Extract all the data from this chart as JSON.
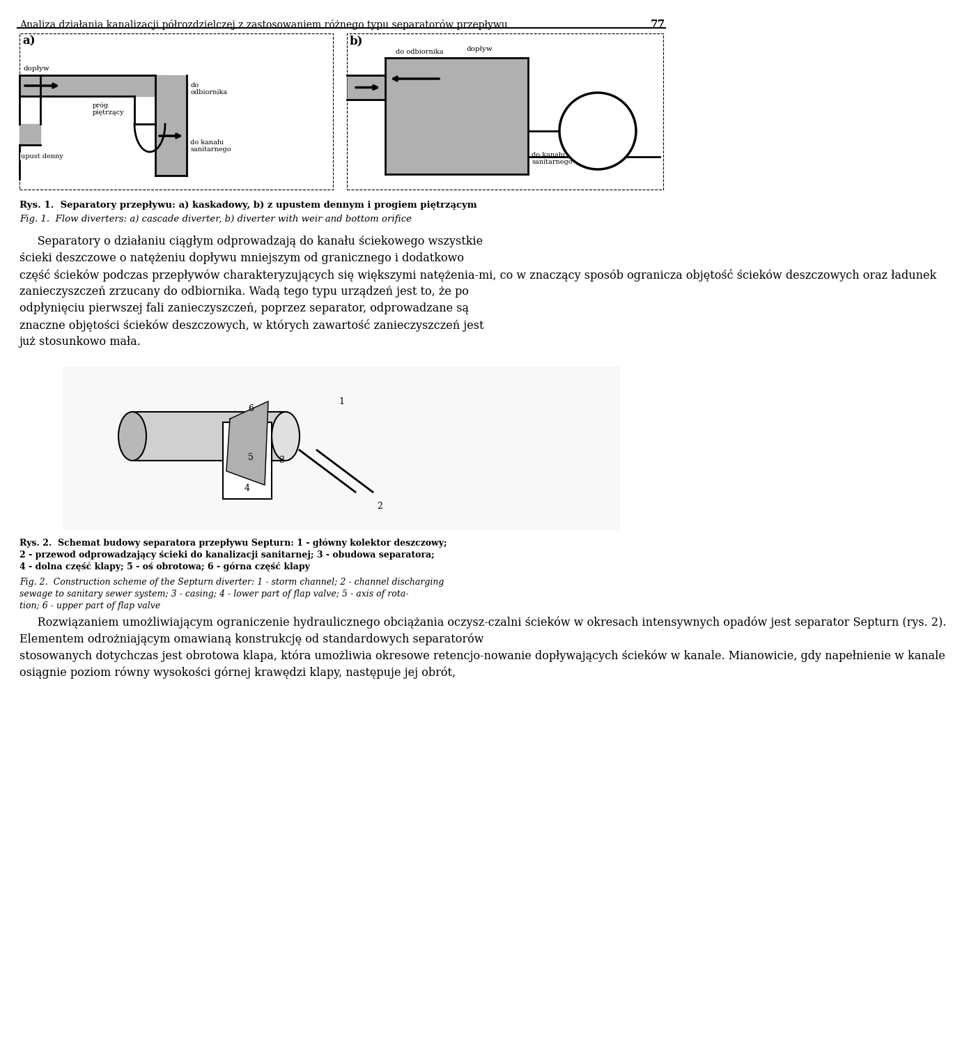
{
  "header_text": "Analiza działania kanalizacji półrozdzielczej z zastosowaniem różnego typu separatorów przepływu",
  "header_number": "77",
  "fig1_caption_pl": "Rys. 1.  Separatory przepływu: a) kaskadowy, b) z upustem dennym i progiem piętrzącym",
  "fig1_caption_en": "Fig. 1.  Flow diverters: a) cascade diverter, b) diverter with weir and bottom orifice",
  "fig2_caption_pl_1": "Rys. 2.  Schemat budowy separatora przepływu Septurn: 1 - główny kolektor deszczowy;",
  "fig2_caption_pl_2": "2 - przewod odprowadzający ścieki do kanalizacji sanitarnej; 3 - obudowa separatora;",
  "fig2_caption_pl_3": "4 - dolna część klapy; 5 - oś obrotowa; 6 - górna część klapy",
  "fig2_caption_en_1": "Fig. 2.  Construction scheme of the Septurn diverter: 1 - storm channel; 2 - channel discharging",
  "fig2_caption_en_2": "sewage to sanitary sewer system; 3 - casing; 4 - lower part of flap valve; 5 - axis of rota-",
  "fig2_caption_en_3": "tion; 6 - upper part of flap valve",
  "paragraph1_lines": [
    "     Separatory o działaniu ciągłym odprowadzają do kanału ściekowego wszystkie",
    "ścieki deszczowe o natężeniu dopływu mniejszym od granicznego i dodatkowo",
    "część ścieków podczas przepływów charakteryzujących się większymi natężenia­mi, co w znaczący sposób ogranicza objętość ścieków deszczowych oraz ładunek",
    "zanieczyszczeń zrzucany do odbiornika. Wadą tego typu urządzeń jest to, że po",
    "odpłynięciu pierwszej fali zanieczyszczeń, poprzez separator, odprowadzane są",
    "znaczne objętości ścieków deszczowych, w których zawartość zanieczyszczeń jest",
    "już stosunkowo mała."
  ],
  "paragraph2_lines": [
    "     Rozwiązaniem umożliwiającym ograniczenie hydraulicznego obciążania oczysz­czalni ścieków w okresach intensywnych opadów jest separator Septurn (rys. 2).",
    "Elementem odrożniającym omawianą konstrukcję od standardowych separatorów",
    "stosowanych dotychczas jest obrotowa klapa, która umożliwia okresowe retencjo­nowanie dopływających ścieków w kanale. Mianowicie, gdy napełnienie w kanale",
    "osiągnie poziom równy wysokości górnej krawędzi klapy, następuje jej obrót,"
  ],
  "bg_color": "#ffffff",
  "text_color": "#000000",
  "gray_fill": "#b0b0b0",
  "dark_gray": "#808080"
}
